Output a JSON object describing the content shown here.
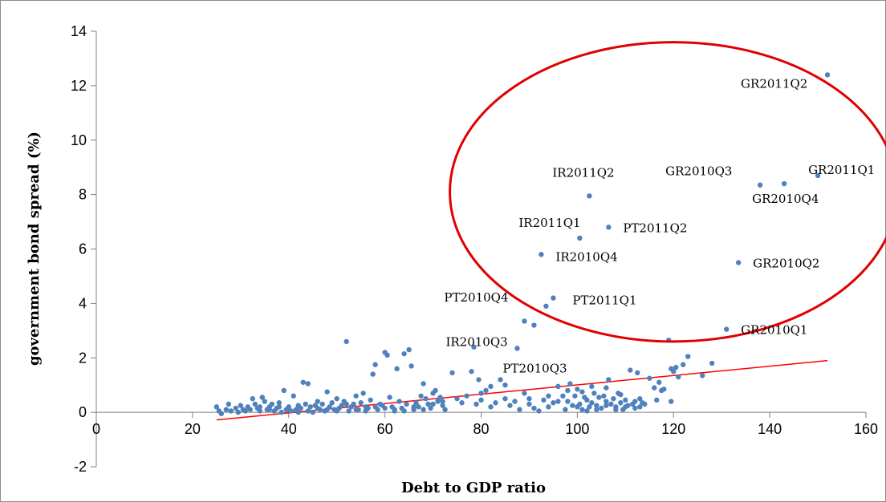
{
  "chart_data": {
    "type": "scatter",
    "xlabel": "Debt to GDP ratio",
    "ylabel": "government bond  spread (%)",
    "xlim": [
      0,
      160
    ],
    "ylim": [
      -2,
      14
    ],
    "x_ticks": [
      0,
      20,
      40,
      60,
      80,
      100,
      120,
      140,
      160
    ],
    "y_ticks": [
      -2,
      0,
      2,
      4,
      6,
      8,
      10,
      12,
      14
    ],
    "grid": false,
    "legend": "none",
    "colors": {
      "points": "#4f81bd",
      "trendline": "#ff0000",
      "ellipse": "#e00000",
      "axis": "#808080"
    },
    "trendline": {
      "x": [
        25,
        152
      ],
      "y": [
        -0.28,
        1.9
      ]
    },
    "highlight_ellipse": {
      "center": [
        120,
        8.1
      ],
      "rx_data": 46.5,
      "ry_data": 5.5
    },
    "labeled_points": [
      {
        "label": "GR2011Q2",
        "x": 152,
        "y": 12.4
      },
      {
        "label": "GR2011Q1",
        "x": 150,
        "y": 8.7
      },
      {
        "label": "GR2010Q4",
        "x": 143,
        "y": 8.4
      },
      {
        "label": "GR2010Q3",
        "x": 138,
        "y": 8.35
      },
      {
        "label": "GR2010Q2",
        "x": 133.5,
        "y": 5.5
      },
      {
        "label": "GR2010Q1",
        "x": 131,
        "y": 3.05
      },
      {
        "label": "IR2011Q2",
        "x": 102.5,
        "y": 7.95
      },
      {
        "label": "PT2011Q2",
        "x": 106.5,
        "y": 6.8
      },
      {
        "label": "IR2011Q1",
        "x": 100.5,
        "y": 6.4
      },
      {
        "label": "IR2010Q4",
        "x": 92.5,
        "y": 5.8
      },
      {
        "label": "PT2011Q1",
        "x": 95,
        "y": 4.2
      },
      {
        "label": "PT2010Q4",
        "x": 93.5,
        "y": 3.9
      },
      {
        "label": "IR2010Q3",
        "x": 89,
        "y": 3.35
      },
      {
        "label": "PT2010Q3",
        "x": 91,
        "y": 3.2
      }
    ],
    "points": [
      [
        25,
        0.2
      ],
      [
        25.5,
        0.05
      ],
      [
        26,
        -0.05
      ],
      [
        27,
        0.1
      ],
      [
        27.5,
        0.3
      ],
      [
        28,
        0.05
      ],
      [
        29,
        0.15
      ],
      [
        29.5,
        0.0
      ],
      [
        30,
        0.25
      ],
      [
        30.5,
        0.1
      ],
      [
        31,
        0.05
      ],
      [
        31.5,
        0.2
      ],
      [
        32,
        0.1
      ],
      [
        32.5,
        0.5
      ],
      [
        33,
        0.3
      ],
      [
        33.5,
        0.15
      ],
      [
        34,
        0.2
      ],
      [
        34.5,
        0.55
      ],
      [
        35,
        0.4
      ],
      [
        35.5,
        0.1
      ],
      [
        36,
        0.2
      ],
      [
        36.5,
        0.3
      ],
      [
        37,
        0.05
      ],
      [
        37.5,
        0.15
      ],
      [
        38,
        0.35
      ],
      [
        38.5,
        0.0
      ],
      [
        39,
        0.8
      ],
      [
        39.5,
        0.1
      ],
      [
        40,
        0.2
      ],
      [
        40.5,
        0.05
      ],
      [
        41,
        0.6
      ],
      [
        41.5,
        0.1
      ],
      [
        42,
        0.25
      ],
      [
        42.5,
        0.15
      ],
      [
        43,
        1.1
      ],
      [
        43.5,
        0.3
      ],
      [
        44,
        1.05
      ],
      [
        44.5,
        0.2
      ],
      [
        45,
        0.0
      ],
      [
        45.5,
        0.25
      ],
      [
        46,
        0.4
      ],
      [
        46.5,
        0.1
      ],
      [
        47,
        0.3
      ],
      [
        47.5,
        0.05
      ],
      [
        48,
        0.75
      ],
      [
        48.5,
        0.2
      ],
      [
        49,
        0.35
      ],
      [
        49.5,
        0.1
      ],
      [
        50,
        0.5
      ],
      [
        50.5,
        0.15
      ],
      [
        51,
        0.25
      ],
      [
        51.5,
        0.4
      ],
      [
        52,
        2.6
      ],
      [
        52.5,
        0.05
      ],
      [
        53,
        0.2
      ],
      [
        53.5,
        0.3
      ],
      [
        54,
        0.6
      ],
      [
        54.5,
        0.1
      ],
      [
        55,
        0.35
      ],
      [
        55.5,
        0.7
      ],
      [
        56,
        0.2
      ],
      [
        56.5,
        0.15
      ],
      [
        57,
        0.45
      ],
      [
        57.5,
        1.4
      ],
      [
        58,
        1.75
      ],
      [
        58.5,
        0.1
      ],
      [
        59,
        0.3
      ],
      [
        59.5,
        0.25
      ],
      [
        60,
        2.2
      ],
      [
        60.5,
        2.1
      ],
      [
        61,
        0.55
      ],
      [
        61.5,
        0.2
      ],
      [
        62,
        0.05
      ],
      [
        62.5,
        1.6
      ],
      [
        63,
        0.4
      ],
      [
        63.5,
        0.15
      ],
      [
        64,
        2.15
      ],
      [
        64.5,
        0.3
      ],
      [
        65,
        2.3
      ],
      [
        65.5,
        1.7
      ],
      [
        66,
        0.1
      ],
      [
        66.5,
        0.35
      ],
      [
        67,
        0.2
      ],
      [
        67.5,
        0.6
      ],
      [
        68,
        1.05
      ],
      [
        68.5,
        0.5
      ],
      [
        69,
        0.3
      ],
      [
        69.5,
        0.15
      ],
      [
        70,
        0.7
      ],
      [
        70.5,
        0.8
      ],
      [
        71,
        0.4
      ],
      [
        71.5,
        0.55
      ],
      [
        72,
        0.25
      ],
      [
        72.5,
        0.1
      ],
      [
        74,
        1.45
      ],
      [
        75,
        0.5
      ],
      [
        76,
        0.35
      ],
      [
        77,
        0.6
      ],
      [
        78,
        1.5
      ],
      [
        78.5,
        2.4
      ],
      [
        79,
        0.3
      ],
      [
        79.5,
        1.2
      ],
      [
        80,
        0.45
      ],
      [
        81,
        0.8
      ],
      [
        82,
        0.2
      ],
      [
        83,
        0.35
      ],
      [
        84,
        1.2
      ],
      [
        85,
        0.5
      ],
      [
        86,
        0.25
      ],
      [
        87,
        0.4
      ],
      [
        87.5,
        2.35
      ],
      [
        88,
        0.1
      ],
      [
        89,
        0.7
      ],
      [
        90,
        0.3
      ],
      [
        91,
        0.15
      ],
      [
        92,
        0.05
      ],
      [
        93,
        0.45
      ],
      [
        94,
        0.2
      ],
      [
        95,
        0.35
      ],
      [
        96,
        0.95
      ],
      [
        97,
        0.6
      ],
      [
        97.5,
        0.1
      ],
      [
        98,
        0.4
      ],
      [
        98.5,
        1.05
      ],
      [
        99,
        0.25
      ],
      [
        99.5,
        0.6
      ],
      [
        100,
        0.85
      ],
      [
        100.5,
        0.3
      ],
      [
        101,
        0.1
      ],
      [
        101.5,
        0.55
      ],
      [
        102,
        0.45
      ],
      [
        102.5,
        0.2
      ],
      [
        103,
        0.35
      ],
      [
        103.5,
        0.7
      ],
      [
        104,
        0.25
      ],
      [
        104.5,
        0.55
      ],
      [
        105,
        0.15
      ],
      [
        105.5,
        0.6
      ],
      [
        106,
        0.4
      ],
      [
        106.5,
        1.2
      ],
      [
        107,
        0.3
      ],
      [
        107.5,
        0.5
      ],
      [
        108,
        0.2
      ],
      [
        108.5,
        0.7
      ],
      [
        109,
        0.35
      ],
      [
        109.5,
        0.1
      ],
      [
        110,
        0.45
      ],
      [
        110.5,
        0.25
      ],
      [
        111,
        1.55
      ],
      [
        111.5,
        0.3
      ],
      [
        112,
        0.4
      ],
      [
        112.5,
        1.45
      ],
      [
        113,
        0.2
      ],
      [
        113.5,
        0.35
      ],
      [
        115,
        1.25
      ],
      [
        116,
        0.9
      ],
      [
        116.5,
        0.45
      ],
      [
        117,
        1.1
      ],
      [
        117.5,
        0.8
      ],
      [
        118,
        0.85
      ],
      [
        119,
        2.65
      ],
      [
        119.5,
        1.6
      ],
      [
        120,
        1.5
      ],
      [
        120.5,
        1.65
      ],
      [
        121,
        1.3
      ],
      [
        122,
        1.75
      ],
      [
        123,
        2.05
      ],
      [
        126,
        1.35
      ],
      [
        128,
        1.8
      ],
      [
        119.5,
        0.4
      ],
      [
        44,
        0.05
      ],
      [
        46,
        0.15
      ],
      [
        48,
        0.1
      ],
      [
        50,
        0.05
      ],
      [
        52,
        0.3
      ],
      [
        54,
        0.1
      ],
      [
        56,
        0.05
      ],
      [
        58,
        0.2
      ],
      [
        60,
        0.15
      ],
      [
        62,
        0.1
      ],
      [
        64,
        0.05
      ],
      [
        66,
        0.2
      ],
      [
        68,
        0.1
      ],
      [
        70,
        0.3
      ],
      [
        72,
        0.4
      ],
      [
        40,
        0.1
      ],
      [
        42,
        0.0
      ],
      [
        38,
        0.2
      ],
      [
        36,
        0.1
      ],
      [
        34,
        0.05
      ],
      [
        100,
        0.2
      ],
      [
        102,
        0.05
      ],
      [
        104,
        0.1
      ],
      [
        106,
        0.25
      ],
      [
        108,
        0.1
      ],
      [
        110,
        0.2
      ],
      [
        112,
        0.15
      ],
      [
        114,
        0.3
      ],
      [
        96,
        0.4
      ],
      [
        94,
        0.6
      ],
      [
        80,
        0.7
      ],
      [
        82,
        0.95
      ],
      [
        85,
        1.0
      ],
      [
        90,
        0.5
      ],
      [
        98,
        0.8
      ],
      [
        106,
        0.9
      ],
      [
        109,
        0.65
      ],
      [
        113,
        0.5
      ],
      [
        103,
        0.95
      ],
      [
        101,
        0.75
      ]
    ]
  }
}
